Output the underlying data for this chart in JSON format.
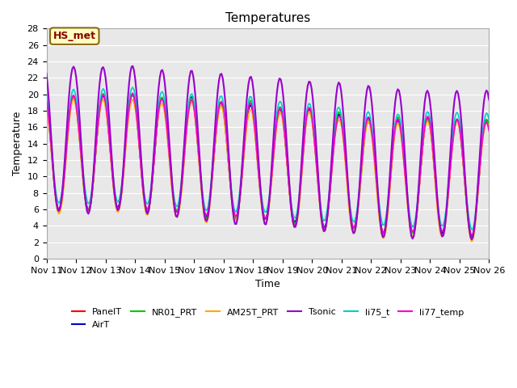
{
  "title": "Temperatures",
  "xlabel": "Time",
  "ylabel": "Temperature",
  "ylim": [
    0,
    28
  ],
  "background_color": "#e8e8e8",
  "annotation_text": "HS_met",
  "annotation_bg": "#ffffc0",
  "annotation_border": "#8b6914",
  "annotation_text_color": "#8b0000",
  "x_tick_labels": [
    "Nov 11",
    "Nov 12",
    "Nov 13",
    "Nov 14",
    "Nov 15",
    "Nov 16",
    "Nov 17",
    "Nov 18",
    "Nov 19",
    "Nov 20",
    "Nov 21",
    "Nov 22",
    "Nov 23",
    "Nov 24",
    "Nov 25",
    "Nov 26"
  ],
  "series": {
    "PanelT": {
      "color": "#ff0000",
      "lw": 1.2
    },
    "AirT": {
      "color": "#0000cc",
      "lw": 1.2
    },
    "NR01_PRT": {
      "color": "#00cc00",
      "lw": 1.2
    },
    "AM25T_PRT": {
      "color": "#ffaa00",
      "lw": 1.2
    },
    "Tsonic": {
      "color": "#9900cc",
      "lw": 1.5
    },
    "li75_t": {
      "color": "#00cccc",
      "lw": 1.2
    },
    "li77_temp": {
      "color": "#ff00cc",
      "lw": 1.2
    }
  }
}
